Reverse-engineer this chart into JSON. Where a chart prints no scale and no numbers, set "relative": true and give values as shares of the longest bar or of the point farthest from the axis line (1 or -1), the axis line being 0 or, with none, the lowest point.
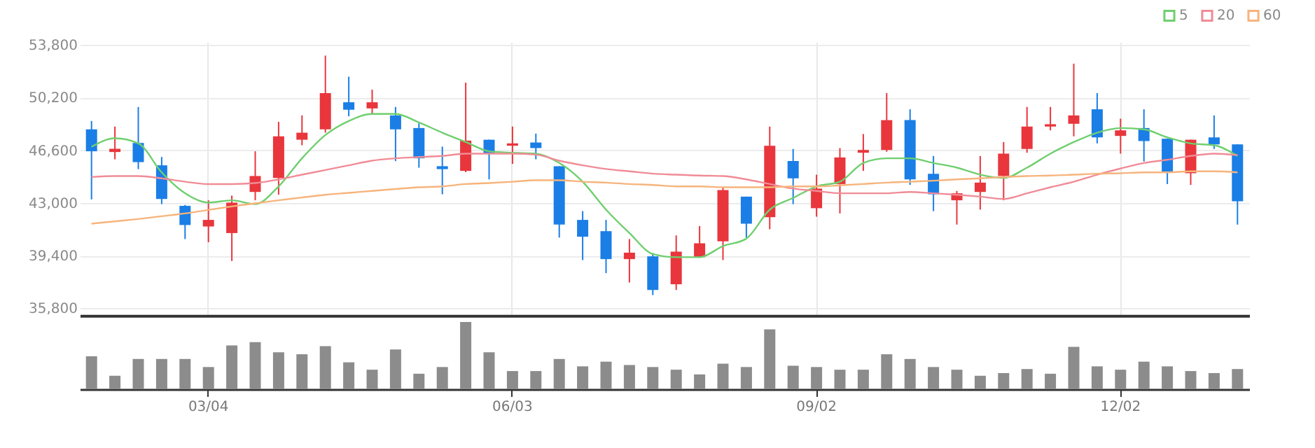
{
  "chart_data": [
    {
      "type": "candlestick",
      "categories": [
        null,
        null,
        null,
        null,
        null,
        null,
        null,
        null,
        null,
        null,
        null,
        null,
        null,
        null,
        null,
        null,
        null,
        null,
        null,
        null,
        null,
        null,
        null,
        null,
        null,
        null,
        null,
        null,
        null,
        null,
        null,
        null,
        null,
        null,
        null,
        null,
        null,
        null,
        null,
        null,
        null,
        null,
        null,
        null,
        null,
        null,
        null,
        null,
        null,
        null
      ],
      "ylim": [
        35300,
        54000
      ],
      "yticks": [
        {
          "value": 35800,
          "label": "35,800"
        },
        {
          "value": 39400,
          "label": "39,400"
        },
        {
          "value": 43000,
          "label": "43,000"
        },
        {
          "value": 46600,
          "label": "46,600"
        },
        {
          "value": 50200,
          "label": "50,200"
        },
        {
          "value": 53800,
          "label": "53,800"
        }
      ],
      "grid": true,
      "legend": "top right",
      "tick_labels": "y",
      "series": [
        {
          "type": "candlestick",
          "ohlc": [
            [
              48030,
              48600,
              43240,
              46530
            ],
            [
              46480,
              48220,
              45980,
              46700
            ],
            [
              47100,
              49560,
              45310,
              45790
            ],
            [
              45570,
              46140,
              42920,
              43270
            ],
            [
              42800,
              42860,
              40530,
              41490
            ],
            [
              41390,
              43180,
              40310,
              41840
            ],
            [
              40940,
              43500,
              39030,
              43020
            ],
            [
              43750,
              46530,
              43180,
              44840
            ],
            [
              44710,
              48540,
              43560,
              47550
            ],
            [
              47320,
              48980,
              46940,
              47800
            ],
            [
              48030,
              53070,
              47800,
              50510
            ],
            [
              49880,
              51630,
              48920,
              49370
            ],
            [
              49460,
              50740,
              49020,
              49880
            ],
            [
              48980,
              49560,
              45860,
              48030
            ],
            [
              48120,
              48440,
              45410,
              46050
            ],
            [
              45510,
              46850,
              43590,
              45310
            ],
            [
              45190,
              51220,
              45100,
              47260
            ],
            [
              47320,
              47330,
              44610,
              46370
            ],
            [
              46910,
              48220,
              45670,
              47070
            ],
            [
              47130,
              47740,
              45980,
              46750
            ],
            [
              45510,
              45510,
              40630,
              41520
            ],
            [
              41840,
              42440,
              39090,
              40690
            ],
            [
              41070,
              41840,
              38200,
              39160
            ],
            [
              39160,
              40530,
              37560,
              39600
            ],
            [
              39350,
              39570,
              36700,
              37050
            ],
            [
              37440,
              40780,
              37050,
              39670
            ],
            [
              39290,
              41420,
              39250,
              40240
            ],
            [
              40370,
              44070,
              39090,
              43880
            ],
            [
              43430,
              43430,
              40630,
              41580
            ],
            [
              42030,
              48220,
              41200,
              46910
            ],
            [
              45860,
              46690,
              42920,
              44680
            ],
            [
              42640,
              44930,
              42060,
              43980
            ],
            [
              44290,
              46750,
              42280,
              46110
            ],
            [
              46430,
              47710,
              45190,
              46620
            ],
            [
              46620,
              50510,
              46500,
              48660
            ],
            [
              48660,
              49400,
              44230,
              44610
            ],
            [
              44990,
              46210,
              42440,
              43590
            ],
            [
              43180,
              43820,
              41520,
              43660
            ],
            [
              43750,
              46210,
              42540,
              44390
            ],
            [
              44840,
              47160,
              43180,
              46370
            ],
            [
              46690,
              49560,
              46430,
              48220
            ],
            [
              48220,
              49560,
              47960,
              48380
            ],
            [
              48410,
              52520,
              47550,
              48980
            ],
            [
              49400,
              50510,
              47070,
              47480
            ],
            [
              47580,
              48760,
              46370,
              47960
            ],
            [
              48120,
              49400,
              45830,
              47230
            ],
            [
              47390,
              47390,
              44290,
              45150
            ],
            [
              45030,
              47320,
              44230,
              47320
            ],
            [
              47480,
              48980,
              46690,
              47000
            ],
            [
              47000,
              47000,
              41520,
              43110
            ]
          ],
          "colors": [
            "#1a7ee6",
            "#e8363c",
            "#1a7ee6",
            "#1a7ee6",
            "#1a7ee6",
            "#e8363c",
            "#e8363c",
            "#e8363c",
            "#e8363c",
            "#e8363c",
            "#e8363c",
            "#1a7ee6",
            "#e8363c",
            "#1a7ee6",
            "#1a7ee6",
            "#1a7ee6",
            "#e8363c",
            "#1a7ee6",
            "#e8363c",
            "#1a7ee6",
            "#1a7ee6",
            "#1a7ee6",
            "#1a7ee6",
            "#e8363c",
            "#1a7ee6",
            "#e8363c",
            "#e8363c",
            "#e8363c",
            "#1a7ee6",
            "#e8363c",
            "#1a7ee6",
            "#e8363c",
            "#e8363c",
            "#e8363c",
            "#e8363c",
            "#1a7ee6",
            "#1a7ee6",
            "#e8363c",
            "#e8363c",
            "#e8363c",
            "#e8363c",
            "#e8363c",
            "#e8363c",
            "#1a7ee6",
            "#e8363c",
            "#1a7ee6",
            "#1a7ee6",
            "#e8363c",
            "#1a7ee6",
            "#1a7ee6"
          ]
        },
        {
          "type": "line",
          "name": "5",
          "color": "#6fcf6f",
          "values": [
            46840,
            47420,
            47070,
            45090,
            43660,
            43020,
            43180,
            42920,
            44130,
            46050,
            47640,
            48600,
            49080,
            49080,
            48500,
            47800,
            47160,
            46530,
            46430,
            46370,
            45730,
            44450,
            42540,
            40940,
            39510,
            39290,
            39290,
            40050,
            40560,
            42540,
            43340,
            44130,
            44450,
            45730,
            46050,
            46050,
            45730,
            45410,
            44930,
            44710,
            45410,
            46370,
            47160,
            47800,
            48120,
            48030,
            47480,
            47070,
            46940,
            46210
          ]
        },
        {
          "type": "line",
          "name": "20",
          "color": "#f08c96",
          "values": [
            44770,
            44840,
            44840,
            44680,
            44450,
            44290,
            44290,
            44360,
            44610,
            44930,
            45250,
            45570,
            45890,
            46050,
            46140,
            46210,
            46370,
            46370,
            46370,
            46300,
            45890,
            45570,
            45320,
            45160,
            45000,
            44930,
            44870,
            44840,
            44610,
            44290,
            43980,
            43820,
            43660,
            43660,
            43660,
            43750,
            43660,
            43560,
            43430,
            43270,
            43660,
            44070,
            44450,
            44930,
            45350,
            45730,
            45950,
            46210,
            46370,
            46270
          ]
        },
        {
          "type": "line",
          "name": "60",
          "color": "#f6b47c",
          "values": [
            41580,
            41740,
            41900,
            42090,
            42280,
            42520,
            42760,
            42970,
            43180,
            43370,
            43560,
            43690,
            43820,
            43950,
            44070,
            44130,
            44290,
            44360,
            44450,
            44550,
            44550,
            44450,
            44390,
            44290,
            44230,
            44130,
            44130,
            44070,
            44070,
            44070,
            44130,
            44130,
            44200,
            44290,
            44390,
            44450,
            44520,
            44610,
            44680,
            44770,
            44840,
            44870,
            44930,
            45000,
            45030,
            45090,
            45090,
            45160,
            45160,
            45090
          ]
        }
      ]
    },
    {
      "type": "bar",
      "relative": true,
      "tick_labels": "x",
      "color": "#8c8c8c",
      "categories": [
        null,
        null,
        null,
        null,
        null,
        "03/04",
        null,
        null,
        null,
        null,
        null,
        null,
        null,
        null,
        null,
        null,
        null,
        null,
        "06/03",
        null,
        null,
        null,
        null,
        null,
        null,
        null,
        null,
        null,
        null,
        null,
        null,
        "09/02",
        null,
        null,
        null,
        null,
        null,
        null,
        null,
        null,
        null,
        null,
        null,
        null,
        "12/02",
        null,
        null,
        null,
        null,
        null
      ],
      "values": [
        0.49,
        0.2,
        0.45,
        0.45,
        0.45,
        0.33,
        0.65,
        0.7,
        0.55,
        0.52,
        0.64,
        0.4,
        0.29,
        0.59,
        0.23,
        0.33,
        1,
        0.55,
        0.27,
        0.27,
        0.45,
        0.34,
        0.41,
        0.36,
        0.33,
        0.29,
        0.22,
        0.38,
        0.33,
        0.89,
        0.35,
        0.33,
        0.29,
        0.29,
        0.52,
        0.45,
        0.33,
        0.29,
        0.2,
        0.24,
        0.3,
        0.23,
        0.63,
        0.34,
        0.29,
        0.41,
        0.34,
        0.27,
        0.24,
        0.3
      ]
    }
  ]
}
